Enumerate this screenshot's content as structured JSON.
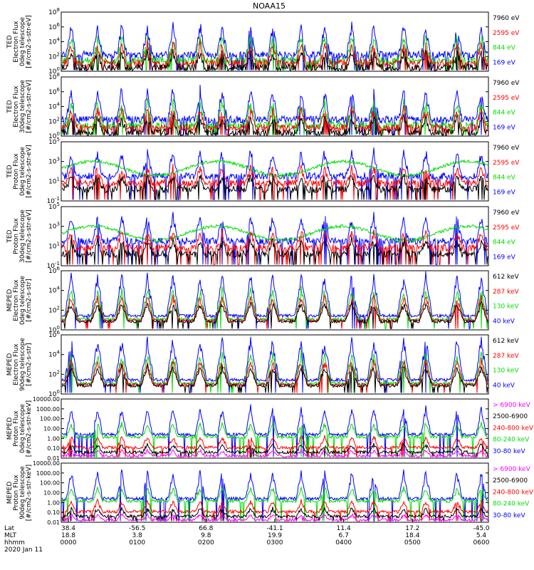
{
  "chart_data": {
    "type": "line",
    "title": "NOAA15",
    "panels": [
      {
        "ylabel": [
          "TED",
          "Electron Flux",
          "0deg telescope",
          "[#/cm2-s-str-eV]"
        ],
        "ticks": [
          "10^0",
          "10^2",
          "10^4",
          "10^6",
          "10^8"
        ],
        "ylim": [
          1,
          100000000.0
        ],
        "scale": "log",
        "legend": [
          {
            "text": "7960 eV",
            "color": "#000000"
          },
          {
            "text": "2595 eV",
            "color": "#ff0000"
          },
          {
            "text": "844 eV",
            "color": "#00dd00"
          },
          {
            "text": "169 eV",
            "color": "#0000ff"
          }
        ]
      },
      {
        "ylabel": [
          "TED",
          "Electron Flux",
          "30deg telescope",
          "[#/cm2-s-str-eV]"
        ],
        "ticks": [
          "10^0",
          "10^2",
          "10^4",
          "10^6",
          "10^8"
        ],
        "ylim": [
          1,
          100000000.0
        ],
        "scale": "log",
        "legend": [
          {
            "text": "7960 eV",
            "color": "#000000"
          },
          {
            "text": "2595 eV",
            "color": "#ff0000"
          },
          {
            "text": "844 eV",
            "color": "#00dd00"
          },
          {
            "text": "169 eV",
            "color": "#0000ff"
          }
        ]
      },
      {
        "ylabel": [
          "TED",
          "Proton Flux",
          "0deg telescope",
          "[#/cm2-s-str-eV]"
        ],
        "ticks": [
          "10^-1",
          "10^1",
          "10^3",
          "10^5"
        ],
        "ylim": [
          0.1,
          100000.0
        ],
        "scale": "log",
        "legend": [
          {
            "text": "7960 eV",
            "color": "#000000"
          },
          {
            "text": "2595 eV",
            "color": "#ff0000"
          },
          {
            "text": "844 eV",
            "color": "#00dd00"
          },
          {
            "text": "169 eV",
            "color": "#0000ff"
          }
        ]
      },
      {
        "ylabel": [
          "TED",
          "Proton Flux",
          "30deg telescope",
          "[#/cm2-s-str-eV]"
        ],
        "ticks": [
          "10^-1",
          "10^1",
          "10^3",
          "10^5"
        ],
        "ylim": [
          0.1,
          100000.0
        ],
        "scale": "log",
        "legend": [
          {
            "text": "7960 eV",
            "color": "#000000"
          },
          {
            "text": "2595 eV",
            "color": "#ff0000"
          },
          {
            "text": "844 eV",
            "color": "#00dd00"
          },
          {
            "text": "169 eV",
            "color": "#0000ff"
          }
        ]
      },
      {
        "ylabel": [
          "MEPED",
          "Electron Flux",
          "0deg telescope",
          "[#/cm2-s-str]"
        ],
        "ticks": [
          "10^0",
          "10^2",
          "10^4",
          "10^6"
        ],
        "ylim": [
          1,
          1000000.0
        ],
        "scale": "log",
        "legend": [
          {
            "text": "612 keV",
            "color": "#000000"
          },
          {
            "text": "287 keV",
            "color": "#ff0000"
          },
          {
            "text": "130 keV",
            "color": "#00dd00"
          },
          {
            "text": "40 keV",
            "color": "#0000ff"
          }
        ]
      },
      {
        "ylabel": [
          "MEPED",
          "Electron Flux",
          "90deg telescope",
          "[#/cm2-s-str]"
        ],
        "ticks": [
          "10^0",
          "10^2",
          "10^4",
          "10^6"
        ],
        "ylim": [
          1,
          1000000.0
        ],
        "scale": "log",
        "legend": [
          {
            "text": "612 keV",
            "color": "#000000"
          },
          {
            "text": "287 keV",
            "color": "#ff0000"
          },
          {
            "text": "130 keV",
            "color": "#00dd00"
          },
          {
            "text": "40 keV",
            "color": "#0000ff"
          }
        ]
      },
      {
        "ylabel": [
          "MEPED",
          "Proton Flux",
          "0deg telescope",
          "[#/cm2-s-str-keV]"
        ],
        "ticks": [
          "0.01",
          "0.10",
          "1.00",
          "10.00",
          "100.00",
          "1000.00",
          "10000.00"
        ],
        "ylim": [
          0.01,
          10000
        ],
        "scale": "log",
        "legend": [
          {
            "text": "> 6900 keV",
            "color": "#ff00ff"
          },
          {
            "text": "2500-6900",
            "color": "#000000"
          },
          {
            "text": "240-800 keV",
            "color": "#ff0000"
          },
          {
            "text": "80-240 keV",
            "color": "#00dd00"
          },
          {
            "text": "30-80 keV",
            "color": "#0000ff"
          }
        ]
      },
      {
        "ylabel": [
          "MEPED",
          "Proton Flux",
          "90deg telescope",
          "[#/cm2-s-str-keV]"
        ],
        "ticks": [
          "0.01",
          "0.10",
          "1.00",
          "10.00",
          "100.00",
          "1000.00",
          "10000.00"
        ],
        "ylim": [
          0.01,
          10000
        ],
        "scale": "log",
        "legend": [
          {
            "text": "> 6900 keV",
            "color": "#ff00ff"
          },
          {
            "text": "2500-6900",
            "color": "#000000"
          },
          {
            "text": "240-800 keV",
            "color": "#ff0000"
          },
          {
            "text": "80-240 keV",
            "color": "#00dd00"
          },
          {
            "text": "30-80 keV",
            "color": "#0000ff"
          }
        ]
      }
    ],
    "x_axis": {
      "row_labels": [
        "Lat",
        "MLT",
        "hhmm"
      ],
      "date": "2020 Jan 11",
      "ticks": [
        {
          "lat": "38.4",
          "mlt": "18.8",
          "hhmm": "0000"
        },
        {
          "lat": "-56.5",
          "mlt": "3.8",
          "hhmm": "0100"
        },
        {
          "lat": "66.8",
          "mlt": "9.8",
          "hhmm": "0200"
        },
        {
          "lat": "-41.1",
          "mlt": "19.9",
          "hhmm": "0300"
        },
        {
          "lat": "11.4",
          "mlt": "6.7",
          "hhmm": "0400"
        },
        {
          "lat": "17.2",
          "mlt": "18.4",
          "hhmm": "0500"
        },
        {
          "lat": "-45.0",
          "mlt": "5.4",
          "hhmm": "0600"
        }
      ]
    }
  }
}
